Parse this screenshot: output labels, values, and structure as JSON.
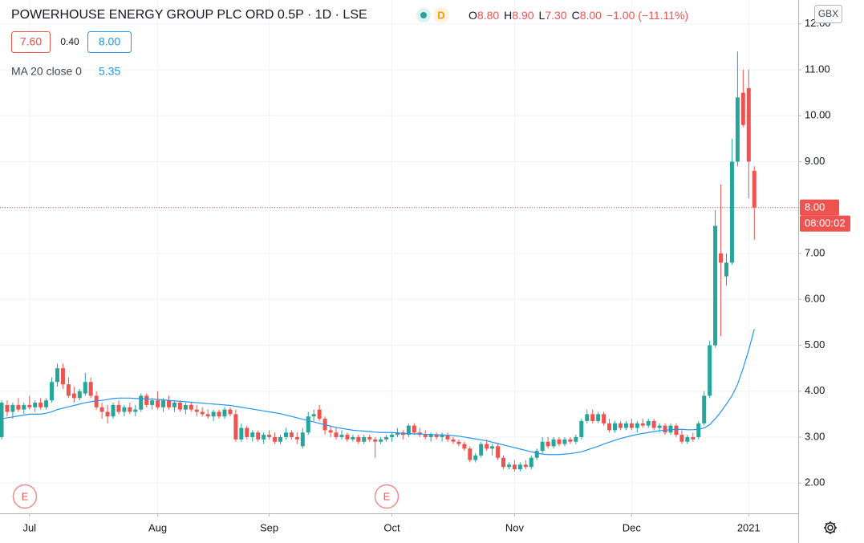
{
  "header": {
    "title": "POWERHOUSE ENERGY GROUP PLC ORD 0.5P · 1D · LSE",
    "interval_badge": "D",
    "ohlc_legend": [
      {
        "label": "O",
        "value": "8.80"
      },
      {
        "label": "H",
        "value": "8.90"
      },
      {
        "label": "L",
        "value": "7.30"
      },
      {
        "label": "C",
        "value": "8.00"
      }
    ],
    "change": "−1.00 (−11.11%)",
    "bid": "7.60",
    "spread": "0.40",
    "ask": "8.00",
    "currency": "GBX"
  },
  "events": [
    {
      "label": "E"
    },
    {
      "label": "E"
    }
  ],
  "chart_data": {
    "type": "candlestick",
    "up_color": "#26a69a",
    "down_color": "#ef5350",
    "grid": true,
    "ylim": [
      1.34,
      12.52
    ],
    "yticks": [
      {
        "value": 2,
        "label": "2.00"
      },
      {
        "value": 3,
        "label": "3.00"
      },
      {
        "value": 4,
        "label": "4.00"
      },
      {
        "value": 5,
        "label": "5.00"
      },
      {
        "value": 6,
        "label": "6.00"
      },
      {
        "value": 7,
        "label": "7.00"
      },
      {
        "value": 8,
        "label": "8.00"
      },
      {
        "value": 9,
        "label": "9.00"
      },
      {
        "value": 10,
        "label": "10.00"
      },
      {
        "value": 11,
        "label": "11.00"
      },
      {
        "value": 12,
        "label": "12.00"
      }
    ],
    "categories": [
      null,
      null,
      null,
      null,
      null,
      "Jul",
      null,
      null,
      null,
      null,
      null,
      null,
      null,
      null,
      null,
      null,
      null,
      null,
      null,
      null,
      null,
      null,
      null,
      null,
      null,
      null,
      null,
      null,
      "Aug",
      null,
      null,
      null,
      null,
      null,
      null,
      null,
      null,
      null,
      null,
      null,
      null,
      null,
      null,
      null,
      null,
      null,
      null,
      null,
      "Sep",
      null,
      null,
      null,
      null,
      null,
      null,
      null,
      null,
      null,
      null,
      null,
      null,
      null,
      null,
      null,
      null,
      null,
      null,
      null,
      null,
      null,
      "Oct",
      null,
      null,
      null,
      null,
      null,
      null,
      null,
      null,
      null,
      null,
      null,
      null,
      null,
      null,
      null,
      null,
      null,
      null,
      null,
      null,
      null,
      "Nov",
      null,
      null,
      null,
      null,
      null,
      null,
      null,
      null,
      null,
      null,
      null,
      null,
      null,
      null,
      null,
      null,
      null,
      null,
      null,
      null,
      "Dec",
      null,
      null,
      null,
      null,
      null,
      null,
      null,
      null,
      null,
      null,
      null,
      null,
      null,
      null,
      null,
      null,
      null,
      null,
      null,
      null,
      "2021",
      null
    ],
    "ohlc": [
      [
        3.0,
        3.8,
        2.95,
        3.75
      ],
      [
        3.7,
        3.8,
        3.45,
        3.55
      ],
      [
        3.55,
        3.75,
        3.4,
        3.7
      ],
      [
        3.7,
        3.85,
        3.55,
        3.6
      ],
      [
        3.6,
        3.75,
        3.5,
        3.7
      ],
      [
        3.7,
        3.9,
        3.6,
        3.65
      ],
      [
        3.65,
        3.8,
        3.55,
        3.75
      ],
      [
        3.75,
        3.85,
        3.6,
        3.65
      ],
      [
        3.65,
        3.85,
        3.6,
        3.8
      ],
      [
        3.8,
        4.3,
        3.75,
        4.2
      ],
      [
        4.2,
        4.6,
        4.1,
        4.5
      ],
      [
        4.5,
        4.6,
        4.05,
        4.15
      ],
      [
        4.15,
        4.3,
        3.85,
        3.9
      ],
      [
        3.95,
        4.1,
        3.75,
        3.85
      ],
      [
        3.85,
        4.05,
        3.8,
        4.0
      ],
      [
        3.95,
        4.4,
        3.9,
        4.2
      ],
      [
        4.2,
        4.3,
        3.85,
        3.9
      ],
      [
        3.9,
        4.0,
        3.6,
        3.65
      ],
      [
        3.65,
        3.75,
        3.4,
        3.55
      ],
      [
        3.55,
        3.7,
        3.3,
        3.45
      ],
      [
        3.45,
        3.75,
        3.4,
        3.7
      ],
      [
        3.7,
        3.8,
        3.5,
        3.55
      ],
      [
        3.55,
        3.7,
        3.45,
        3.65
      ],
      [
        3.65,
        3.75,
        3.5,
        3.55
      ],
      [
        3.55,
        3.7,
        3.45,
        3.6
      ],
      [
        3.6,
        3.95,
        3.55,
        3.9
      ],
      [
        3.9,
        3.95,
        3.65,
        3.7
      ],
      [
        3.7,
        3.85,
        3.6,
        3.8
      ],
      [
        3.8,
        4.0,
        3.6,
        3.65
      ],
      [
        3.65,
        3.85,
        3.55,
        3.8
      ],
      [
        3.8,
        3.9,
        3.6,
        3.65
      ],
      [
        3.65,
        3.8,
        3.55,
        3.75
      ],
      [
        3.75,
        3.8,
        3.55,
        3.6
      ],
      [
        3.6,
        3.75,
        3.5,
        3.7
      ],
      [
        3.7,
        3.75,
        3.55,
        3.6
      ],
      [
        3.6,
        3.7,
        3.45,
        3.55
      ],
      [
        3.55,
        3.65,
        3.45,
        3.5
      ],
      [
        3.5,
        3.6,
        3.4,
        3.45
      ],
      [
        3.45,
        3.6,
        3.35,
        3.55
      ],
      [
        3.55,
        3.6,
        3.4,
        3.45
      ],
      [
        3.45,
        3.65,
        3.4,
        3.6
      ],
      [
        3.6,
        3.65,
        3.45,
        3.5
      ],
      [
        3.5,
        3.6,
        2.9,
        2.95
      ],
      [
        2.95,
        3.3,
        2.9,
        3.2
      ],
      [
        3.2,
        3.25,
        2.95,
        3.0
      ],
      [
        3.0,
        3.15,
        2.9,
        3.1
      ],
      [
        3.1,
        3.15,
        2.9,
        2.95
      ],
      [
        2.95,
        3.1,
        2.85,
        3.05
      ],
      [
        3.05,
        3.15,
        2.95,
        3.0
      ],
      [
        3.0,
        3.1,
        2.85,
        2.9
      ],
      [
        2.9,
        3.05,
        2.85,
        3.0
      ],
      [
        3.0,
        3.2,
        2.95,
        3.1
      ],
      [
        3.1,
        3.15,
        2.95,
        3.0
      ],
      [
        3.0,
        3.1,
        2.85,
        2.95
      ],
      [
        2.8,
        3.2,
        2.75,
        3.1
      ],
      [
        3.1,
        3.55,
        3.05,
        3.45
      ],
      [
        3.45,
        3.6,
        3.35,
        3.5
      ],
      [
        3.6,
        3.7,
        3.35,
        3.4
      ],
      [
        3.4,
        3.45,
        3.05,
        3.15
      ],
      [
        3.15,
        3.25,
        3.0,
        3.1
      ],
      [
        3.1,
        3.2,
        2.95,
        3.0
      ],
      [
        3.0,
        3.15,
        2.95,
        3.05
      ],
      [
        3.05,
        3.1,
        2.9,
        2.95
      ],
      [
        2.95,
        3.05,
        2.9,
        3.0
      ],
      [
        3.0,
        3.05,
        2.85,
        2.9
      ],
      [
        2.9,
        3.05,
        2.85,
        3.0
      ],
      [
        3.0,
        3.05,
        2.9,
        2.95
      ],
      [
        2.95,
        3.0,
        2.55,
        2.9
      ],
      [
        2.9,
        3.0,
        2.85,
        2.95
      ],
      [
        2.95,
        3.05,
        2.9,
        3.0
      ],
      [
        3.0,
        3.1,
        2.9,
        3.05
      ],
      [
        3.05,
        3.2,
        3.0,
        3.1
      ],
      [
        3.1,
        3.15,
        2.95,
        3.05
      ],
      [
        3.05,
        3.3,
        3.0,
        3.25
      ],
      [
        3.25,
        3.3,
        3.05,
        3.1
      ],
      [
        3.1,
        3.2,
        3.0,
        3.05
      ],
      [
        3.05,
        3.15,
        2.95,
        3.0
      ],
      [
        3.0,
        3.1,
        2.9,
        3.05
      ],
      [
        3.05,
        3.1,
        2.95,
        3.0
      ],
      [
        3.0,
        3.1,
        2.9,
        3.05
      ],
      [
        3.05,
        3.1,
        2.9,
        2.95
      ],
      [
        2.95,
        3.0,
        2.85,
        2.9
      ],
      [
        2.9,
        2.95,
        2.8,
        2.85
      ],
      [
        2.85,
        2.9,
        2.7,
        2.75
      ],
      [
        2.75,
        2.8,
        2.45,
        2.5
      ],
      [
        2.5,
        2.65,
        2.45,
        2.6
      ],
      [
        2.6,
        2.9,
        2.55,
        2.85
      ],
      [
        2.85,
        2.95,
        2.7,
        2.75
      ],
      [
        2.75,
        2.85,
        2.6,
        2.8
      ],
      [
        2.8,
        2.85,
        2.5,
        2.55
      ],
      [
        2.55,
        2.6,
        2.3,
        2.35
      ],
      [
        2.35,
        2.45,
        2.3,
        2.4
      ],
      [
        2.4,
        2.5,
        2.25,
        2.3
      ],
      [
        2.3,
        2.45,
        2.25,
        2.4
      ],
      [
        2.4,
        2.5,
        2.3,
        2.35
      ],
      [
        2.35,
        2.6,
        2.3,
        2.55
      ],
      [
        2.55,
        2.75,
        2.5,
        2.7
      ],
      [
        2.7,
        3.0,
        2.65,
        2.9
      ],
      [
        2.9,
        3.0,
        2.75,
        2.8
      ],
      [
        2.8,
        3.0,
        2.75,
        2.95
      ],
      [
        2.95,
        3.0,
        2.8,
        2.85
      ],
      [
        2.85,
        3.0,
        2.8,
        2.95
      ],
      [
        2.95,
        3.0,
        2.85,
        2.9
      ],
      [
        2.9,
        3.05,
        2.85,
        3.0
      ],
      [
        3.0,
        3.4,
        2.95,
        3.35
      ],
      [
        3.35,
        3.6,
        3.3,
        3.5
      ],
      [
        3.5,
        3.6,
        3.3,
        3.35
      ],
      [
        3.35,
        3.55,
        3.3,
        3.5
      ],
      [
        3.5,
        3.55,
        3.25,
        3.3
      ],
      [
        3.3,
        3.4,
        3.1,
        3.15
      ],
      [
        3.15,
        3.35,
        3.1,
        3.3
      ],
      [
        3.3,
        3.35,
        3.15,
        3.2
      ],
      [
        3.2,
        3.35,
        3.15,
        3.3
      ],
      [
        3.3,
        3.4,
        3.15,
        3.2
      ],
      [
        3.2,
        3.35,
        3.1,
        3.3
      ],
      [
        3.3,
        3.4,
        3.2,
        3.25
      ],
      [
        3.25,
        3.4,
        3.2,
        3.35
      ],
      [
        3.35,
        3.4,
        3.15,
        3.2
      ],
      [
        3.2,
        3.3,
        3.1,
        3.25
      ],
      [
        3.25,
        3.3,
        3.05,
        3.1
      ],
      [
        3.1,
        3.3,
        3.05,
        3.25
      ],
      [
        3.25,
        3.3,
        3.0,
        3.05
      ],
      [
        3.05,
        3.15,
        2.85,
        2.9
      ],
      [
        2.9,
        3.05,
        2.85,
        3.0
      ],
      [
        3.0,
        3.1,
        2.9,
        2.95
      ],
      [
        3.0,
        3.35,
        2.95,
        3.3
      ],
      [
        3.3,
        4.0,
        3.25,
        3.9
      ],
      [
        3.9,
        5.1,
        3.85,
        5.0
      ],
      [
        5.0,
        7.95,
        4.95,
        7.6
      ],
      [
        7.0,
        8.5,
        5.2,
        6.8
      ],
      [
        6.5,
        7.0,
        6.3,
        6.8
      ],
      [
        6.8,
        9.5,
        6.75,
        9.0
      ],
      [
        9.0,
        11.4,
        8.9,
        10.4
      ],
      [
        10.5,
        11.0,
        9.75,
        9.8
      ],
      [
        10.6,
        11.0,
        8.2,
        9.0
      ],
      [
        8.8,
        8.9,
        7.3,
        8.0
      ]
    ],
    "ma": {
      "name": "MA 20 close 0",
      "color": "#2196f3",
      "values": [
        3.4,
        3.42,
        3.44,
        3.46,
        3.48,
        3.5,
        3.5,
        3.5,
        3.52,
        3.55,
        3.6,
        3.63,
        3.66,
        3.69,
        3.72,
        3.75,
        3.77,
        3.79,
        3.8,
        3.82,
        3.84,
        3.85,
        3.85,
        3.85,
        3.84,
        3.84,
        3.83,
        3.83,
        3.82,
        3.81,
        3.8,
        3.79,
        3.78,
        3.77,
        3.76,
        3.75,
        3.74,
        3.73,
        3.72,
        3.71,
        3.7,
        3.69,
        3.67,
        3.65,
        3.63,
        3.61,
        3.59,
        3.57,
        3.55,
        3.53,
        3.51,
        3.48,
        3.45,
        3.42,
        3.39,
        3.36,
        3.33,
        3.3,
        3.27,
        3.24,
        3.21,
        3.19,
        3.17,
        3.15,
        3.14,
        3.13,
        3.12,
        3.11,
        3.1,
        3.1,
        3.1,
        3.09,
        3.08,
        3.08,
        3.07,
        3.07,
        3.06,
        3.06,
        3.05,
        3.05,
        3.04,
        3.03,
        3.02,
        3.0,
        2.98,
        2.96,
        2.94,
        2.92,
        2.89,
        2.86,
        2.83,
        2.8,
        2.77,
        2.74,
        2.71,
        2.68,
        2.65,
        2.63,
        2.62,
        2.62,
        2.62,
        2.63,
        2.64,
        2.66,
        2.68,
        2.72,
        2.76,
        2.8,
        2.85,
        2.89,
        2.93,
        2.97,
        3.0,
        3.03,
        3.06,
        3.08,
        3.1,
        3.12,
        3.14,
        3.15,
        3.16,
        3.17,
        3.17,
        3.16,
        3.16,
        3.17,
        3.2,
        3.27,
        3.4,
        3.55,
        3.72,
        3.9,
        4.15,
        4.5,
        4.9,
        5.35
      ]
    },
    "last_price": {
      "value": 8,
      "label": "8.00"
    },
    "countdown": "08:00:02"
  }
}
